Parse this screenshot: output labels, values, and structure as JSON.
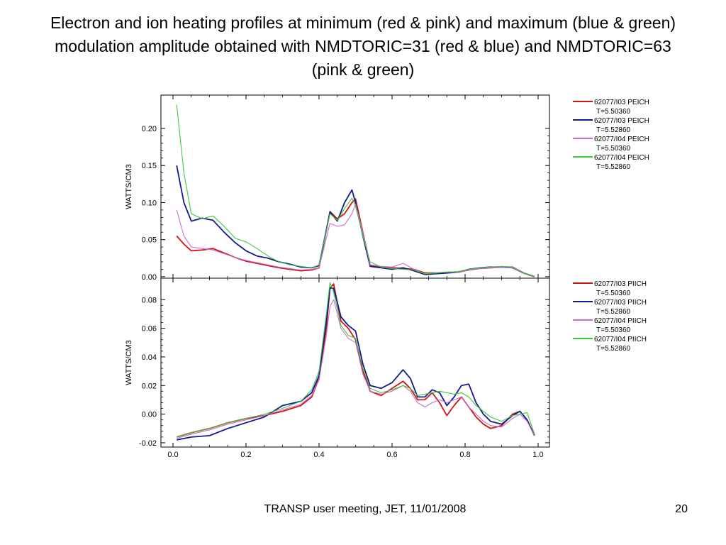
{
  "slide": {
    "title": "Electron and ion heating profiles at minimum (red & pink) and maximum (blue & green) modulation amplitude obtained with NMDTORIC=31 (red & blue) and NMDTORIC=63 (pink & green)",
    "footer": "TRANSP user meeting, JET, 11/01/2008",
    "page_number": "20"
  },
  "colors": {
    "red": "#d21414",
    "blue": "#141a8c",
    "pink": "#c86ed2",
    "green": "#3cc83c"
  },
  "chart_data": [
    {
      "type": "line",
      "ylabel": "WATTS/CM3",
      "xlim": [
        0.0,
        1.0
      ],
      "ylim": [
        -0.002,
        0.245
      ],
      "yticks": [
        0.0,
        0.05,
        0.1,
        0.15,
        0.2
      ],
      "ytick_labels": [
        "0.00",
        "0.05",
        "0.10",
        "0.15",
        "0.20"
      ],
      "legend_placement": "right",
      "series": [
        {
          "name": "62077/I03 PEICH",
          "time": "T=5.50360",
          "color": "#d21414",
          "x": [
            0.01,
            0.03,
            0.05,
            0.08,
            0.11,
            0.14,
            0.17,
            0.2,
            0.23,
            0.26,
            0.29,
            0.32,
            0.35,
            0.38,
            0.4,
            0.43,
            0.45,
            0.47,
            0.49,
            0.5,
            0.52,
            0.54,
            0.57,
            0.6,
            0.63,
            0.66,
            0.69,
            0.72,
            0.75,
            0.78,
            0.81,
            0.84,
            0.87,
            0.9,
            0.93,
            0.96,
            0.99
          ],
          "y": [
            0.055,
            0.044,
            0.035,
            0.036,
            0.038,
            0.032,
            0.026,
            0.021,
            0.018,
            0.015,
            0.012,
            0.01,
            0.008,
            0.009,
            0.012,
            0.088,
            0.078,
            0.085,
            0.1,
            0.105,
            0.06,
            0.015,
            0.013,
            0.012,
            0.011,
            0.01,
            0.005,
            0.005,
            0.006,
            0.006,
            0.009,
            0.011,
            0.012,
            0.013,
            0.013,
            0.005,
            0.0
          ]
        },
        {
          "name": "62077/I03 PEICH",
          "time": "T=5.52860",
          "color": "#141a8c",
          "x": [
            0.01,
            0.03,
            0.05,
            0.08,
            0.11,
            0.14,
            0.17,
            0.2,
            0.23,
            0.26,
            0.29,
            0.32,
            0.35,
            0.38,
            0.4,
            0.43,
            0.45,
            0.47,
            0.49,
            0.5,
            0.52,
            0.54,
            0.57,
            0.6,
            0.63,
            0.66,
            0.69,
            0.72,
            0.75,
            0.78,
            0.81,
            0.84,
            0.87,
            0.9,
            0.93,
            0.96,
            0.99
          ],
          "y": [
            0.15,
            0.1,
            0.075,
            0.079,
            0.076,
            0.06,
            0.046,
            0.035,
            0.028,
            0.025,
            0.02,
            0.017,
            0.013,
            0.012,
            0.015,
            0.087,
            0.075,
            0.1,
            0.117,
            0.1,
            0.055,
            0.014,
            0.012,
            0.01,
            0.012,
            0.008,
            0.003,
            0.004,
            0.005,
            0.006,
            0.01,
            0.012,
            0.013,
            0.013,
            0.012,
            0.005,
            0.0
          ]
        },
        {
          "name": "62077/I04 PEICH",
          "time": "T=5.50360",
          "color": "#c86ed2",
          "x": [
            0.01,
            0.03,
            0.05,
            0.08,
            0.11,
            0.14,
            0.17,
            0.2,
            0.23,
            0.26,
            0.29,
            0.32,
            0.35,
            0.38,
            0.4,
            0.43,
            0.45,
            0.47,
            0.49,
            0.5,
            0.52,
            0.54,
            0.57,
            0.6,
            0.63,
            0.66,
            0.69,
            0.72,
            0.75,
            0.78,
            0.81,
            0.84,
            0.87,
            0.9,
            0.93,
            0.96,
            0.99
          ],
          "y": [
            0.09,
            0.055,
            0.04,
            0.038,
            0.036,
            0.031,
            0.026,
            0.022,
            0.019,
            0.016,
            0.013,
            0.011,
            0.009,
            0.01,
            0.012,
            0.072,
            0.068,
            0.07,
            0.085,
            0.098,
            0.06,
            0.016,
            0.014,
            0.013,
            0.018,
            0.01,
            0.004,
            0.005,
            0.006,
            0.006,
            0.009,
            0.011,
            0.012,
            0.013,
            0.012,
            0.005,
            0.0
          ]
        },
        {
          "name": "62077/I04 PEICH",
          "time": "T=5.52860",
          "color": "#3cc83c",
          "x": [
            0.01,
            0.03,
            0.05,
            0.08,
            0.11,
            0.14,
            0.17,
            0.2,
            0.23,
            0.26,
            0.29,
            0.32,
            0.35,
            0.38,
            0.4,
            0.43,
            0.45,
            0.47,
            0.49,
            0.5,
            0.52,
            0.54,
            0.57,
            0.6,
            0.63,
            0.66,
            0.69,
            0.72,
            0.75,
            0.78,
            0.81,
            0.84,
            0.87,
            0.9,
            0.93,
            0.96,
            0.99
          ],
          "y": [
            0.232,
            0.14,
            0.085,
            0.078,
            0.082,
            0.068,
            0.052,
            0.047,
            0.038,
            0.028,
            0.02,
            0.016,
            0.014,
            0.012,
            0.016,
            0.085,
            0.076,
            0.092,
            0.106,
            0.095,
            0.055,
            0.02,
            0.013,
            0.011,
            0.01,
            0.009,
            0.004,
            0.005,
            0.006,
            0.007,
            0.01,
            0.012,
            0.013,
            0.014,
            0.013,
            0.005,
            0.0
          ]
        }
      ]
    },
    {
      "type": "line",
      "ylabel": "WATTS/CM3",
      "xlim": [
        0.0,
        1.0
      ],
      "ylim": [
        -0.023,
        0.095
      ],
      "yticks": [
        -0.02,
        0.0,
        0.02,
        0.04,
        0.06,
        0.08
      ],
      "ytick_labels": [
        "-0.02",
        "0.00",
        "0.02",
        "0.04",
        "0.06",
        "0.08"
      ],
      "xticks": [
        0.0,
        0.2,
        0.4,
        0.6,
        0.8,
        1.0
      ],
      "xtick_labels": [
        "0.0",
        "0.2",
        "0.4",
        "0.6",
        "0.8",
        "1.0"
      ],
      "legend_placement": "right",
      "series": [
        {
          "name": "62077/I03 PIICH",
          "time": "T=5.50360",
          "color": "#d21414",
          "x": [
            0.01,
            0.05,
            0.1,
            0.15,
            0.2,
            0.25,
            0.3,
            0.35,
            0.38,
            0.4,
            0.42,
            0.43,
            0.44,
            0.46,
            0.48,
            0.5,
            0.52,
            0.54,
            0.57,
            0.6,
            0.63,
            0.65,
            0.67,
            0.69,
            0.71,
            0.73,
            0.75,
            0.77,
            0.79,
            0.81,
            0.83,
            0.85,
            0.87,
            0.9,
            0.93,
            0.95,
            0.97,
            0.99
          ],
          "y": [
            -0.016,
            -0.013,
            -0.01,
            -0.006,
            -0.003,
            -0.001,
            0.002,
            0.006,
            0.012,
            0.025,
            0.06,
            0.088,
            0.091,
            0.065,
            0.06,
            0.052,
            0.03,
            0.016,
            0.013,
            0.018,
            0.023,
            0.018,
            0.01,
            0.01,
            0.015,
            0.008,
            -0.001,
            0.006,
            0.012,
            0.005,
            -0.002,
            -0.007,
            -0.01,
            -0.008,
            0.0,
            0.002,
            -0.004,
            -0.015
          ]
        },
        {
          "name": "62077/I03 PIICH",
          "time": "T=5.52860",
          "color": "#141a8c",
          "x": [
            0.01,
            0.05,
            0.1,
            0.15,
            0.2,
            0.25,
            0.3,
            0.35,
            0.38,
            0.4,
            0.42,
            0.43,
            0.44,
            0.46,
            0.48,
            0.5,
            0.52,
            0.54,
            0.57,
            0.6,
            0.63,
            0.65,
            0.67,
            0.69,
            0.71,
            0.73,
            0.75,
            0.77,
            0.79,
            0.81,
            0.83,
            0.85,
            0.87,
            0.9,
            0.93,
            0.95,
            0.97,
            0.99
          ],
          "y": [
            -0.018,
            -0.016,
            -0.015,
            -0.01,
            -0.006,
            -0.002,
            0.006,
            0.009,
            0.015,
            0.027,
            0.065,
            0.088,
            0.088,
            0.068,
            0.062,
            0.058,
            0.035,
            0.02,
            0.018,
            0.022,
            0.031,
            0.025,
            0.012,
            0.012,
            0.017,
            0.015,
            0.006,
            0.012,
            0.02,
            0.021,
            0.008,
            0.0,
            -0.005,
            -0.007,
            -0.001,
            0.002,
            -0.004,
            -0.015
          ]
        },
        {
          "name": "62077/I04 PIICH",
          "time": "T=5.50360",
          "color": "#c86ed2",
          "x": [
            0.01,
            0.05,
            0.1,
            0.15,
            0.2,
            0.25,
            0.3,
            0.35,
            0.38,
            0.4,
            0.42,
            0.43,
            0.44,
            0.46,
            0.48,
            0.5,
            0.52,
            0.54,
            0.57,
            0.6,
            0.63,
            0.65,
            0.67,
            0.69,
            0.71,
            0.73,
            0.75,
            0.77,
            0.79,
            0.81,
            0.83,
            0.85,
            0.87,
            0.9,
            0.93,
            0.95,
            0.97,
            0.99
          ],
          "y": [
            -0.017,
            -0.014,
            -0.011,
            -0.007,
            -0.004,
            -0.001,
            0.003,
            0.007,
            0.013,
            0.024,
            0.055,
            0.075,
            0.08,
            0.06,
            0.053,
            0.05,
            0.028,
            0.016,
            0.014,
            0.016,
            0.02,
            0.016,
            0.008,
            0.005,
            0.008,
            0.01,
            0.008,
            0.01,
            0.012,
            0.005,
            0.0,
            -0.005,
            -0.008,
            -0.009,
            -0.003,
            0.0,
            -0.005,
            -0.015
          ]
        },
        {
          "name": "62077/I04 PIICH",
          "time": "T=5.52860",
          "color": "#3cc83c",
          "x": [
            0.01,
            0.05,
            0.1,
            0.15,
            0.2,
            0.25,
            0.3,
            0.35,
            0.38,
            0.4,
            0.42,
            0.43,
            0.44,
            0.46,
            0.48,
            0.5,
            0.52,
            0.54,
            0.57,
            0.6,
            0.63,
            0.65,
            0.67,
            0.69,
            0.71,
            0.73,
            0.75,
            0.77,
            0.79,
            0.81,
            0.83,
            0.85,
            0.87,
            0.9,
            0.93,
            0.95,
            0.97,
            0.99
          ],
          "y": [
            -0.016,
            -0.013,
            -0.01,
            -0.006,
            -0.003,
            0.0,
            0.004,
            0.009,
            0.017,
            0.03,
            0.07,
            0.092,
            0.085,
            0.062,
            0.055,
            0.053,
            0.032,
            0.018,
            0.015,
            0.017,
            0.02,
            0.018,
            0.013,
            0.014,
            0.015,
            0.016,
            0.015,
            0.014,
            0.015,
            0.012,
            0.006,
            0.002,
            -0.002,
            -0.005,
            -0.001,
            0.0,
            0.001,
            -0.014
          ]
        }
      ]
    }
  ]
}
